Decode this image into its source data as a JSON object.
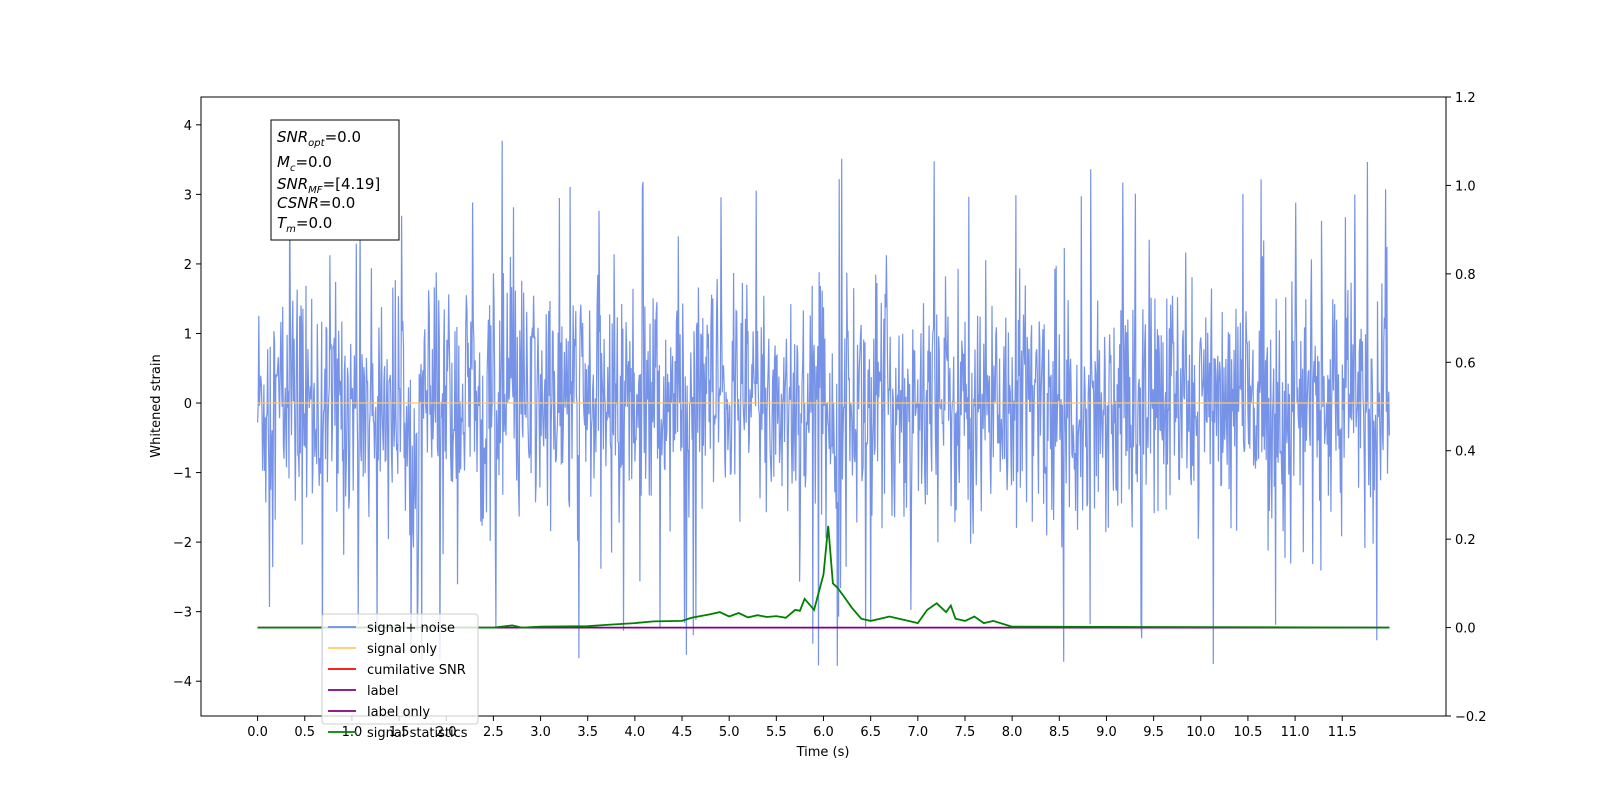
{
  "chart_data": {
    "type": "line",
    "xlabel": "Time (s)",
    "ylabel": "Whitened strain",
    "xlim": [
      -0.6,
      12.6
    ],
    "ylim": [
      -4.5,
      4.4
    ],
    "y2lim": [
      -0.2,
      1.2
    ],
    "x_ticks": [
      "0.0",
      "0.5",
      "1.0",
      "1.5",
      "2.0",
      "2.5",
      "3.0",
      "3.5",
      "4.0",
      "4.5",
      "5.0",
      "5.5",
      "6.0",
      "6.5",
      "7.0",
      "7.5",
      "8.0",
      "8.5",
      "9.0",
      "9.5",
      "10.0",
      "10.5",
      "11.0",
      "11.5"
    ],
    "y_ticks": [
      "4",
      "3",
      "2",
      "1",
      "0",
      "−1",
      "−2",
      "−3",
      "−4"
    ],
    "y2_ticks": [
      "1.2",
      "1.0",
      "0.8",
      "0.6",
      "0.4",
      "0.2",
      "0.0",
      "−0.2"
    ],
    "annotation": {
      "snr_opt": {
        "main": "SNR",
        "sub": "opt",
        "value": "=0.0"
      },
      "mc": {
        "main": "M",
        "sub": "c",
        "value": "=0.0"
      },
      "snr_mf": {
        "main": "SNR",
        "sub": "MF",
        "value": "=[4.19]"
      },
      "csnr": {
        "main": "CSNR",
        "value": "=0.0"
      },
      "tm": {
        "main": "T",
        "sub": "m",
        "value": "=0.0"
      }
    },
    "legend": {
      "placement": "lower left",
      "entries": [
        {
          "label": "signal+ noise",
          "color": "#6f8de6"
        },
        {
          "label": "signal only",
          "color": "#ffc966"
        },
        {
          "label": "cumilative SNR",
          "color": "#ff0000"
        },
        {
          "label": "label",
          "color": "#800080"
        },
        {
          "label": "label only",
          "color": "#800080"
        },
        {
          "label": "signal statistics",
          "color": "#008000"
        }
      ]
    },
    "series": [
      {
        "name": "signal+ noise",
        "axis": "left",
        "color": "#6f8de6",
        "x_range": [
          0.0,
          12.0
        ],
        "typical_range": [
          -2.0,
          2.5
        ],
        "extremes": [
          -4.05,
          3.9
        ]
      },
      {
        "name": "signal only",
        "axis": "left",
        "color": "#ffc966",
        "x": [
          0.0,
          12.0
        ],
        "y": [
          0.0,
          0.0
        ]
      },
      {
        "name": "label",
        "axis": "right",
        "color": "#800080",
        "x": [
          0.0,
          12.0
        ],
        "y": [
          0.0,
          0.0
        ]
      },
      {
        "name": "signal statistics",
        "axis": "right",
        "color": "#008000",
        "x": [
          0.0,
          2.5,
          2.7,
          2.8,
          3.0,
          3.5,
          3.7,
          4.0,
          4.2,
          4.5,
          4.6,
          4.8,
          4.9,
          5.0,
          5.1,
          5.2,
          5.3,
          5.4,
          5.5,
          5.6,
          5.7,
          5.75,
          5.8,
          5.9,
          6.0,
          6.05,
          6.1,
          6.15,
          6.2,
          6.3,
          6.4,
          6.5,
          6.6,
          6.7,
          6.8,
          6.9,
          7.0,
          7.1,
          7.2,
          7.3,
          7.35,
          7.4,
          7.5,
          7.6,
          7.7,
          7.8,
          8.0,
          12.0
        ],
        "y": [
          0.0,
          0.0,
          0.005,
          0.0,
          0.002,
          0.003,
          0.006,
          0.01,
          0.014,
          0.015,
          0.022,
          0.03,
          0.035,
          0.025,
          0.033,
          0.023,
          0.028,
          0.024,
          0.026,
          0.022,
          0.04,
          0.038,
          0.065,
          0.04,
          0.12,
          0.23,
          0.1,
          0.09,
          0.075,
          0.045,
          0.02,
          0.015,
          0.02,
          0.025,
          0.02,
          0.015,
          0.01,
          0.04,
          0.055,
          0.035,
          0.05,
          0.02,
          0.015,
          0.025,
          0.01,
          0.015,
          0.002,
          0.0
        ]
      }
    ]
  }
}
